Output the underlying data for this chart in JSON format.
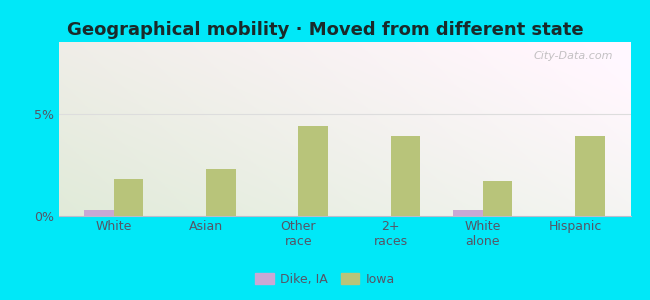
{
  "title": "Geographical mobility · Moved from different state",
  "categories": [
    "White",
    "Asian",
    "Other\nrace",
    "2+\nraces",
    "White\nalone",
    "Hispanic"
  ],
  "dike_values": [
    0.3,
    0.0,
    0.0,
    0.0,
    0.3,
    0.0
  ],
  "iowa_values": [
    1.8,
    2.3,
    4.4,
    3.9,
    1.7,
    3.9
  ],
  "dike_color": "#c9a8d4",
  "iowa_color": "#b8c47a",
  "ylim": [
    0,
    8.5
  ],
  "yticks": [
    0,
    5
  ],
  "ytick_labels": [
    "0%",
    "5%"
  ],
  "outer_bg": "#00e8f8",
  "bar_width": 0.32,
  "title_fontsize": 13,
  "tick_fontsize": 9,
  "legend_fontsize": 9,
  "title_color": "#1a2a2a",
  "tick_color": "#555566",
  "watermark": "City-Data.com"
}
